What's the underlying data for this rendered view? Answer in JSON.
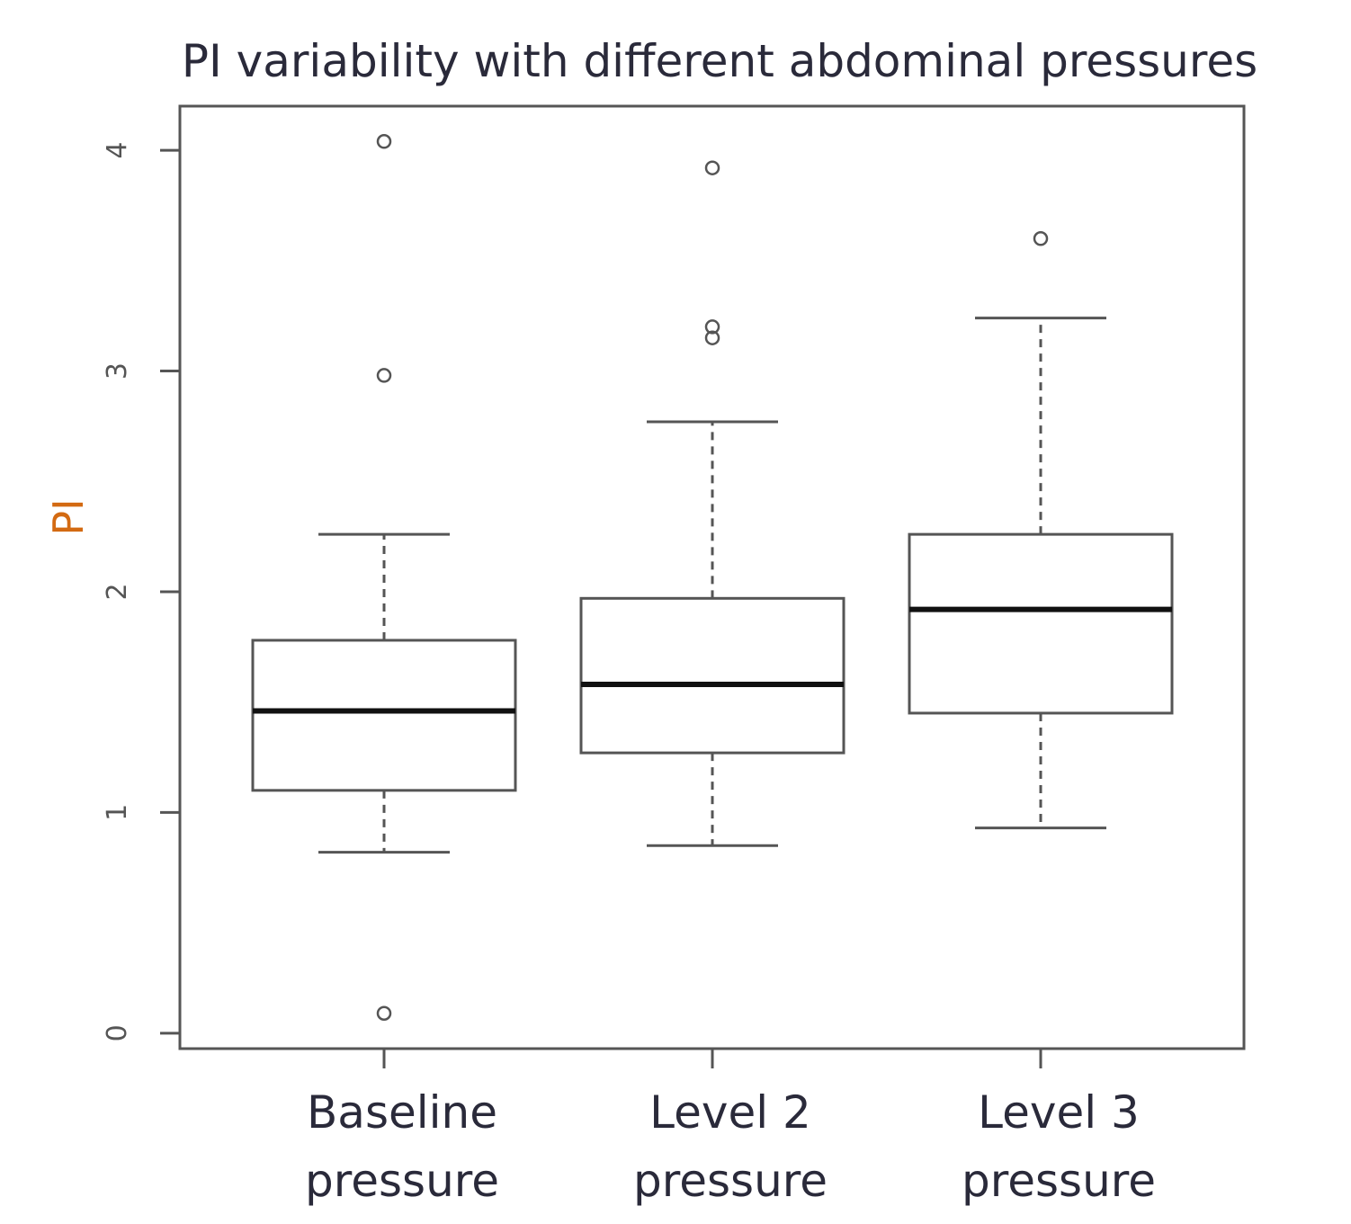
{
  "chart_data": {
    "type": "boxplot",
    "title": "PI variability with different abdominal pressures",
    "ylabel": "PI",
    "xlabel": "",
    "ylim": [
      -0.07,
      4.2
    ],
    "yticks": [
      "0",
      "1",
      "2",
      "3",
      "4"
    ],
    "grid": false,
    "categories": [
      [
        "Baseline",
        "pressure"
      ],
      [
        "Level 2",
        "pressure"
      ],
      [
        "Level 3",
        "pressure"
      ]
    ],
    "boxes": [
      {
        "whisker_low": 0.82,
        "q1": 1.1,
        "median": 1.46,
        "q3": 1.78,
        "whisker_high": 2.26,
        "outliers": [
          4.04,
          2.98,
          0.09
        ]
      },
      {
        "whisker_low": 0.85,
        "q1": 1.27,
        "median": 1.58,
        "q3": 1.97,
        "whisker_high": 2.77,
        "outliers": [
          3.92,
          3.2,
          3.15
        ]
      },
      {
        "whisker_low": 0.93,
        "q1": 1.45,
        "median": 1.92,
        "q3": 2.26,
        "whisker_high": 3.24,
        "outliers": [
          3.6
        ]
      }
    ],
    "colors": {
      "title": "#2a2a3a",
      "ylabel": "#d36a12",
      "axis": "#555555",
      "median": "#111111"
    }
  }
}
